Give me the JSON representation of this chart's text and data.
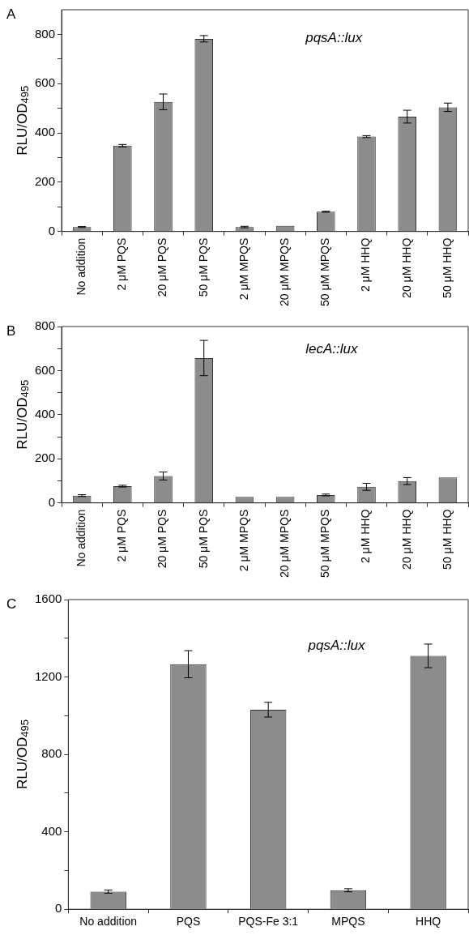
{
  "chart_data": [
    {
      "type": "bar",
      "title": "A",
      "ylabel": "RLU/OD$_{495}$",
      "annotations": [
        "pqsA::lux"
      ],
      "categories": [
        "No addition",
        "2 μM PQS",
        "20 μM PQS",
        "50 μM PQS",
        "2 μM MPQS",
        "20 μM MPQS",
        "50 μM MPQS",
        "2 μM HHQ",
        "20 μM HHQ",
        "50 μM HHQ"
      ],
      "values": [
        18,
        348,
        526,
        782,
        18,
        23,
        80,
        385,
        466,
        504
      ],
      "errors": [
        2,
        5,
        32,
        13,
        3,
        null,
        2,
        4,
        26,
        17
      ],
      "color": "#8c8c8c",
      "ylim": [
        0,
        900
      ],
      "yticks": [
        0,
        {
          "value": 100,
          "label": null
        },
        200,
        {
          "value": 300,
          "label": null
        },
        400,
        {
          "value": 500,
          "label": null
        },
        600,
        {
          "value": 700,
          "label": null
        },
        800
      ],
      "grid": false
    },
    {
      "type": "bar",
      "title": "B",
      "ylabel": "RLU/OD$_{495}$",
      "annotations": [
        "lecA::lux"
      ],
      "categories": [
        "No addition",
        "2 μM PQS",
        "20 μM PQS",
        "50 μM PQS",
        "2 μM MPQS",
        "20 μM MPQS",
        "50 μM MPQS",
        "2 μM HHQ",
        "20 μM HHQ",
        "50 μM HHQ"
      ],
      "values": [
        33,
        76,
        122,
        657,
        27,
        27,
        36,
        73,
        99,
        116
      ],
      "errors": [
        4,
        4,
        18,
        80,
        null,
        null,
        4,
        16,
        16,
        null
      ],
      "color": "#8c8c8c",
      "ylim": [
        0,
        800
      ],
      "yticks": [
        0,
        {
          "value": 100,
          "label": null
        },
        200,
        {
          "value": 300,
          "label": null
        },
        400,
        {
          "value": 500,
          "label": null
        },
        600,
        {
          "value": 700,
          "label": null
        },
        800
      ],
      "grid": false
    },
    {
      "type": "bar",
      "title": "C",
      "ylabel": "RLU/OD$_{495}$",
      "annotations": [
        "pqsA::lux"
      ],
      "categories": [
        "No addition",
        "PQS",
        "PQS-Fe 3:1",
        "MPQS",
        "HHQ"
      ],
      "values": [
        91,
        1266,
        1031,
        98,
        1309
      ],
      "errors": [
        8,
        70,
        38,
        8,
        61
      ],
      "color": "#8c8c8c",
      "ylim": [
        0,
        1600
      ],
      "yticks": [
        0,
        {
          "value": 200,
          "label": null
        },
        400,
        {
          "value": 600,
          "label": null
        },
        800,
        {
          "value": 1000,
          "label": null
        },
        1200,
        {
          "value": 1400,
          "label": null
        },
        1600
      ],
      "grid": false
    }
  ]
}
